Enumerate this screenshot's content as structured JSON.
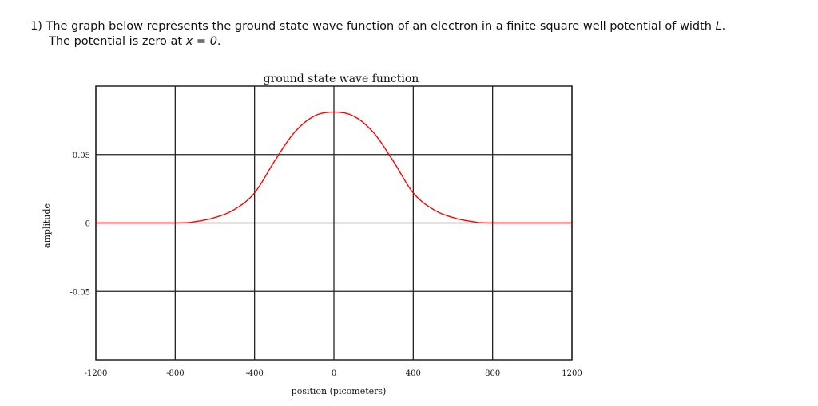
{
  "question": {
    "number": "1)",
    "line1_text": "The graph below represents the ground state wave function of an electron in a finite square well potential of width ",
    "line1_var": "L",
    "line1_end": ".",
    "line2_text": "The potential is zero at ",
    "line2_var": "x",
    "line2_mid": " = ",
    "line2_val": "0",
    "line2_end": "."
  },
  "chart_data": {
    "type": "line",
    "title": "ground state wave function",
    "xlabel": "position (picometers)",
    "ylabel": "amplitude",
    "xlim": [
      -1200,
      1200
    ],
    "ylim": [
      -0.1,
      0.1
    ],
    "xticks": [
      -1200,
      -800,
      -400,
      0,
      400,
      800,
      1200
    ],
    "xtick_labels": [
      "-1200",
      "-800",
      "-400",
      "0",
      "400",
      "800",
      "1200"
    ],
    "yticks": [
      -0.05,
      0,
      0.05
    ],
    "ytick_labels": [
      "-0.05",
      "0",
      "0.05"
    ],
    "grid": true,
    "legend": null,
    "series": [
      {
        "name": "ground state wave function",
        "color": "#ff0000",
        "x": [
          -1200,
          -800,
          -700,
          -600,
          -500,
          -400,
          -300,
          -200,
          -100,
          0,
          100,
          200,
          300,
          400,
          500,
          600,
          700,
          800,
          1200
        ],
        "y": [
          0,
          0,
          0.001,
          0.004,
          0.01,
          0.022,
          0.045,
          0.066,
          0.078,
          0.081,
          0.078,
          0.066,
          0.045,
          0.022,
          0.01,
          0.004,
          0.001,
          0,
          0
        ]
      }
    ]
  }
}
